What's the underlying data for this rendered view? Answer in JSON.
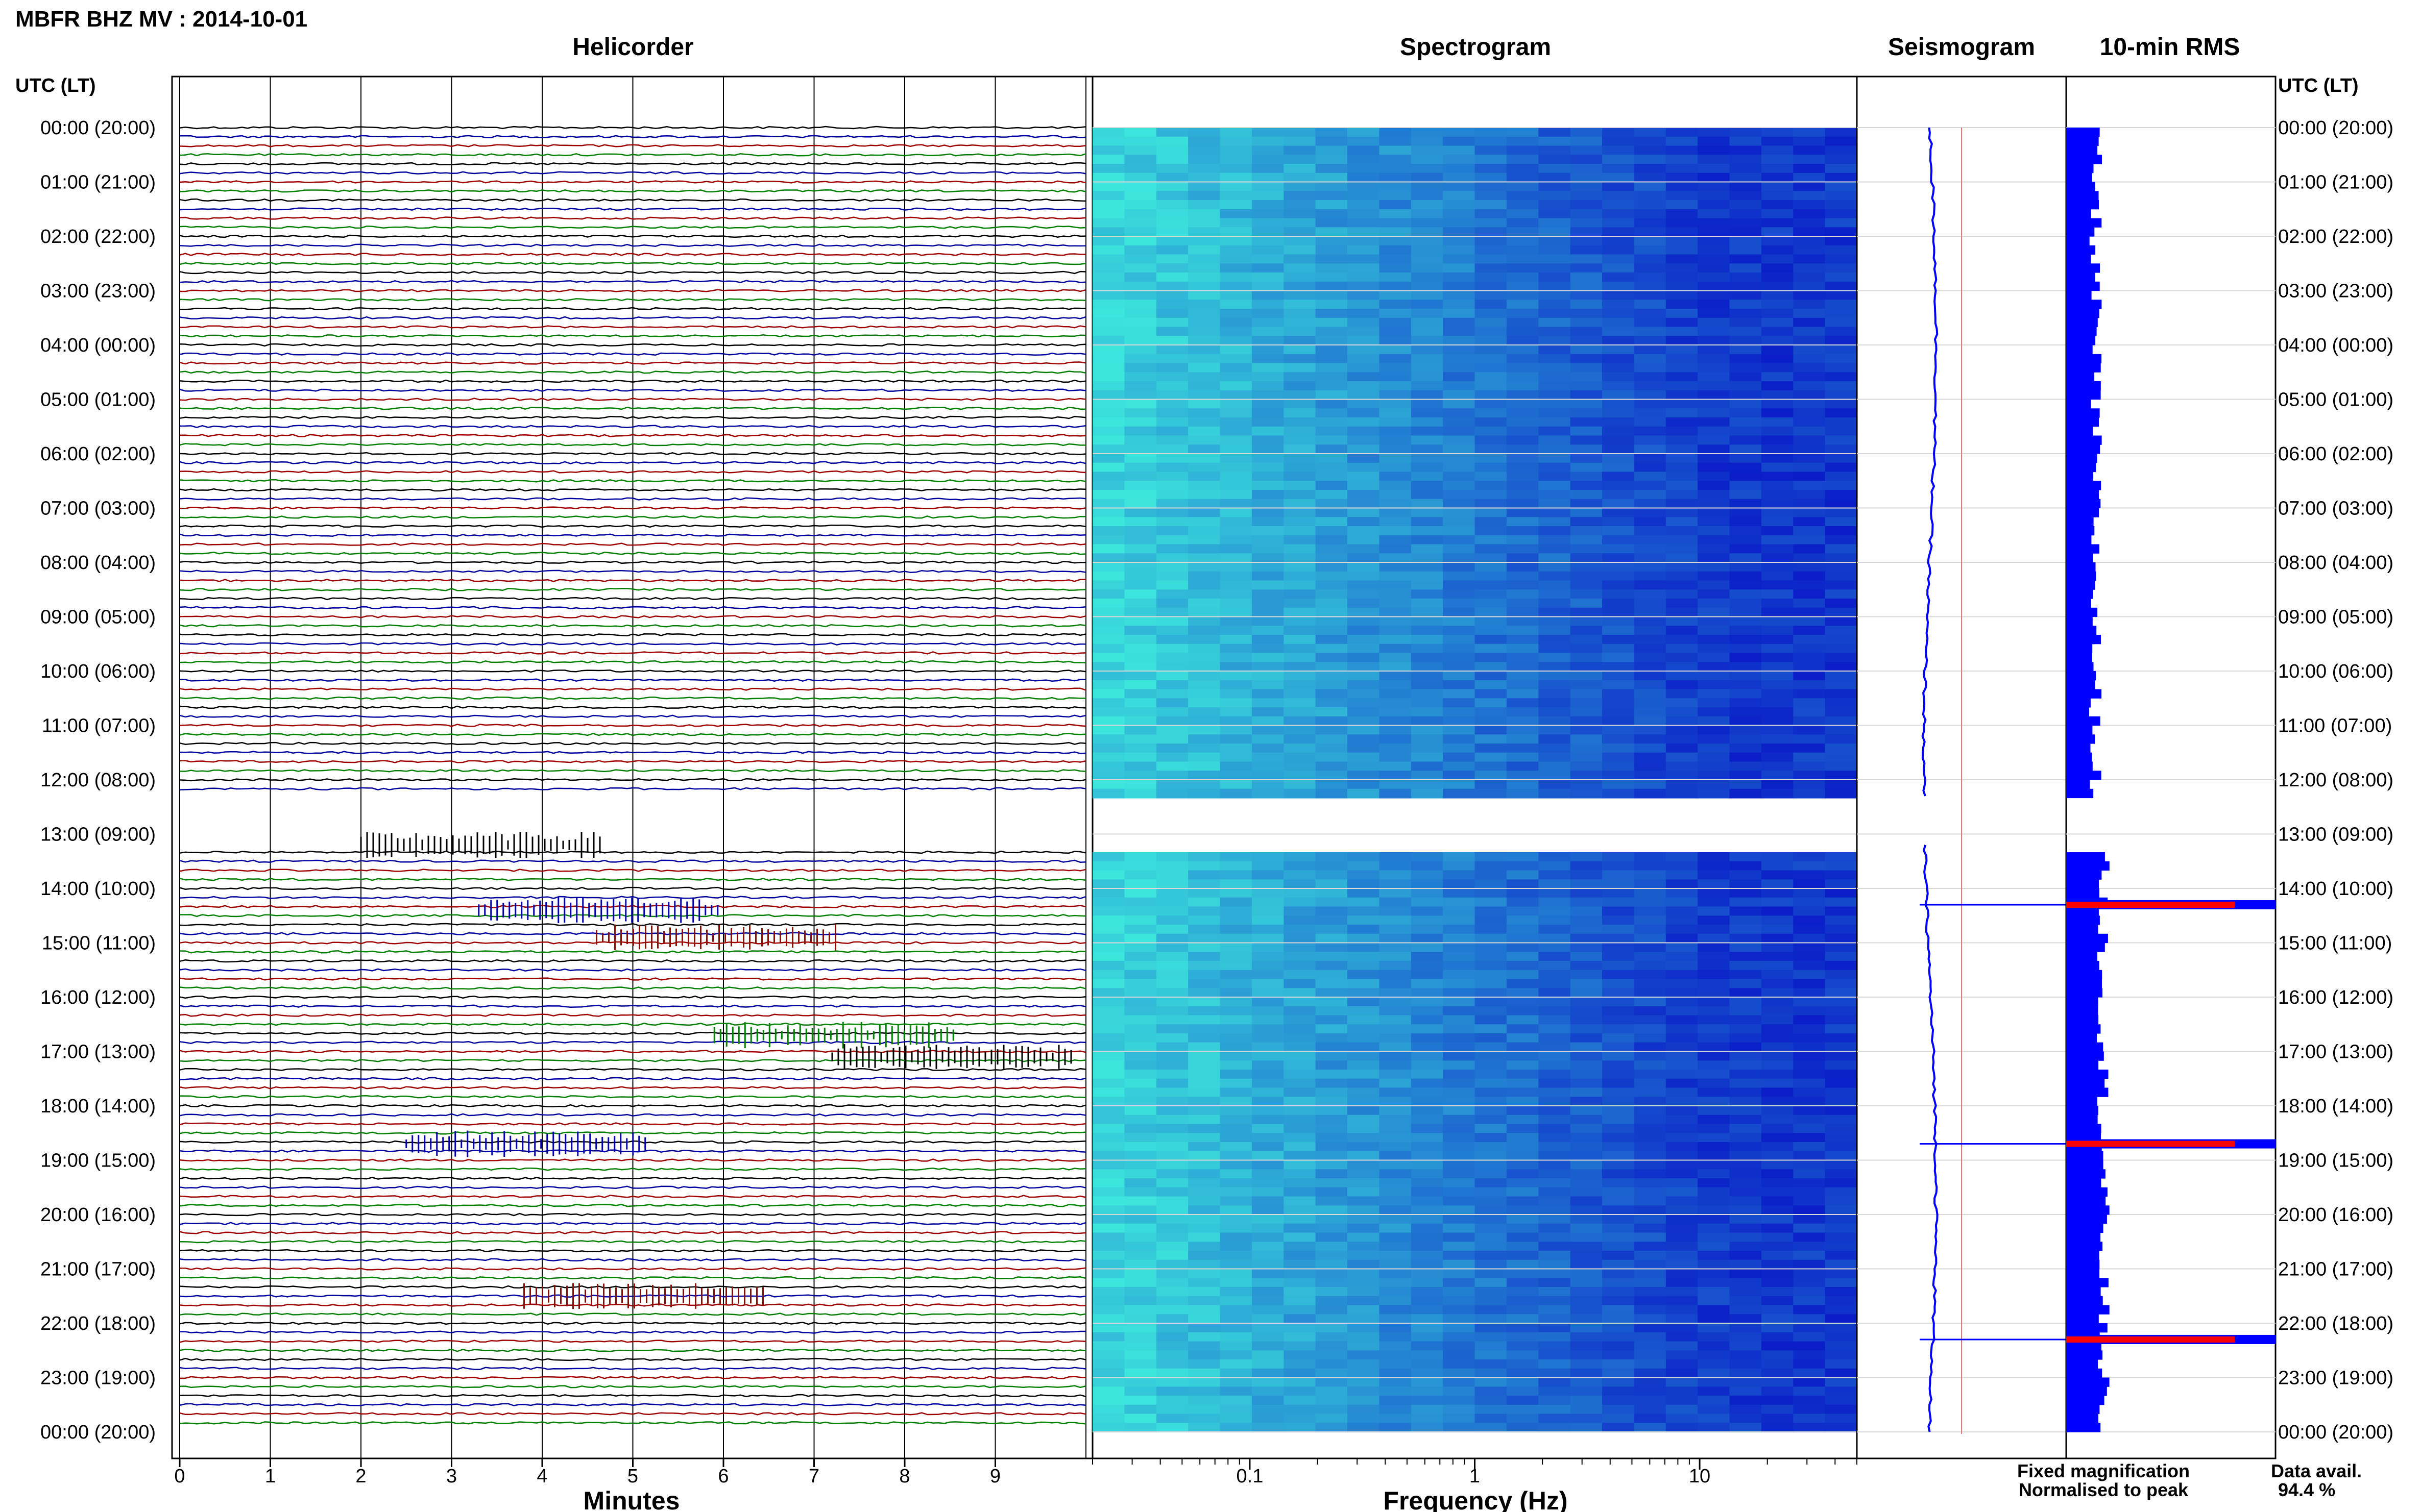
{
  "header": {
    "title": "MBFR BHZ MV : 2014-10-01"
  },
  "panels": {
    "helicorder": "Helicorder",
    "spectrogram": "Spectrogram",
    "seismogram": "Seismogram",
    "rms": "10-min RMS"
  },
  "axes": {
    "time_label_left": "UTC (LT)",
    "time_label_right": "UTC (LT)",
    "helicorder_xlabel": "Minutes",
    "spectrogram_xlabel": "Frequency (Hz)"
  },
  "legend": {
    "fixed": "Fixed magnification",
    "normalised": "Normalised to peak",
    "fixed_color": "#0000ff",
    "normalised_color": "#ff0000"
  },
  "availability": {
    "label": "Data avail.",
    "value": "94.4 %"
  },
  "colors": {
    "trace_cycle": [
      "#000000",
      "#0000a0",
      "#a00000",
      "#008000"
    ],
    "spectrogram_low": "#0a1fd0",
    "spectrogram_high": "#30f0e0",
    "rms_fixed": "#0000ff",
    "rms_normalised": "#ff0000"
  },
  "chart_data": {
    "type": "heatmap",
    "time_ticks": [
      "00:00 (20:00)",
      "01:00 (21:00)",
      "02:00 (22:00)",
      "03:00 (23:00)",
      "04:00 (00:00)",
      "05:00 (01:00)",
      "06:00 (02:00)",
      "07:00 (03:00)",
      "08:00 (04:00)",
      "09:00 (05:00)",
      "10:00 (06:00)",
      "11:00 (07:00)",
      "12:00 (08:00)",
      "13:00 (09:00)",
      "14:00 (10:00)",
      "15:00 (11:00)",
      "16:00 (12:00)",
      "17:00 (13:00)",
      "18:00 (14:00)",
      "19:00 (15:00)",
      "20:00 (16:00)",
      "21:00 (17:00)",
      "22:00 (18:00)",
      "23:00 (19:00)",
      "00:00 (20:00)"
    ],
    "helicorder": {
      "xlim": [
        0,
        10
      ],
      "x_ticks": [
        "0",
        "1",
        "2",
        "3",
        "4",
        "5",
        "6",
        "7",
        "8",
        "9"
      ],
      "lines_per_hour": 6,
      "gap_hours": [
        12.3,
        13.2
      ],
      "event_hours": [
        13.2,
        14.4,
        14.9,
        16.7,
        17.1,
        18.7,
        21.5
      ]
    },
    "spectrogram": {
      "scale": "log",
      "xlim": [
        0.02,
        50
      ],
      "x_ticks": [
        "0.1",
        "1",
        "10"
      ],
      "x_tick_values": [
        0.1,
        1,
        10
      ]
    },
    "rms": {
      "peak_hours": [
        14.3,
        18.7,
        22.3
      ]
    }
  }
}
